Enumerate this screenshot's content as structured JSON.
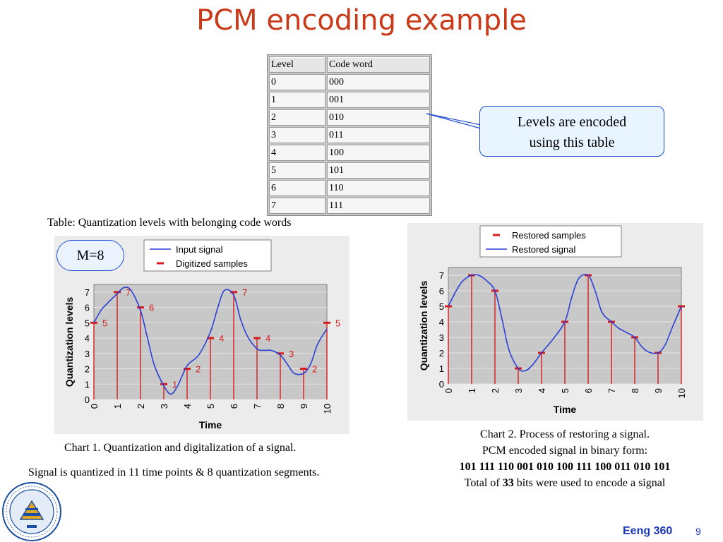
{
  "slide": {
    "title": "PCM encoding example",
    "footer_course": "Eeng 360",
    "footer_page": "9"
  },
  "code_table": {
    "headers": [
      "Level",
      "Code word"
    ],
    "rows": [
      [
        "0",
        "000"
      ],
      [
        "1",
        "001"
      ],
      [
        "2",
        "010"
      ],
      [
        "3",
        "011"
      ],
      [
        "4",
        "100"
      ],
      [
        "5",
        "101"
      ],
      [
        "6",
        "110"
      ],
      [
        "7",
        "111"
      ]
    ],
    "caption": "Table: Quantization levels with belonging code words"
  },
  "callout": {
    "line1": "Levels are encoded",
    "line2": "using this table"
  },
  "m_badge": "M=8",
  "left_captions": {
    "chart1": "Chart 1. Quantization and digitalization of a signal.",
    "note": "Signal is quantized in 11 time points & 8 quantization segments."
  },
  "right_captions": {
    "line1": "Chart 2. Process of restoring a signal.",
    "line2": "PCM encoded signal in binary form:",
    "binary": "101 111 110 001 010 100 111 100 011 010 101",
    "total_prefix": "Total of ",
    "total_bits": "33",
    "total_suffix": " bits were used to encode a signal"
  },
  "colors": {
    "title": "#c83a1a",
    "signal": "#2b3fd6",
    "samples": "#d81c1c",
    "plot_bg": "#c8c8c8",
    "panel_bg": "#ececec",
    "footer": "#1a36b8"
  },
  "chart_data": [
    {
      "type": "line",
      "xlabel": "Time",
      "ylabel": "Quantization levels",
      "xlim": [
        0,
        10
      ],
      "ylim": [
        0,
        7.5
      ],
      "xticks": [
        0,
        1,
        2,
        3,
        4,
        5,
        6,
        7,
        8,
        9,
        10
      ],
      "yticks": [
        0,
        1,
        2,
        3,
        4,
        5,
        6,
        7
      ],
      "grid": true,
      "legend_position": "top-right",
      "series": [
        {
          "name": "Input signal",
          "kind": "line",
          "x": [
            0,
            0.3,
            0.6,
            1.0,
            1.3,
            1.6,
            2.0,
            2.3,
            2.6,
            3.0,
            3.3,
            3.6,
            4.0,
            4.5,
            5.0,
            5.3,
            5.6,
            6.0,
            6.3,
            6.6,
            7.0,
            7.3,
            7.6,
            8.0,
            8.3,
            8.6,
            9.0,
            9.3,
            9.6,
            10.0
          ],
          "y": [
            5.0,
            5.8,
            6.3,
            6.9,
            7.3,
            7.1,
            5.8,
            4.0,
            2.2,
            0.9,
            0.35,
            0.9,
            2.2,
            2.9,
            4.4,
            5.9,
            7.1,
            6.8,
            5.2,
            4.1,
            3.3,
            3.2,
            3.2,
            2.9,
            2.3,
            1.7,
            1.7,
            2.3,
            3.6,
            4.6
          ]
        },
        {
          "name": "Digitized samples",
          "kind": "samples",
          "x": [
            0,
            1,
            2,
            3,
            4,
            5,
            6,
            7,
            8,
            9,
            10
          ],
          "y": [
            5,
            7,
            6,
            1,
            2,
            4,
            7,
            4,
            3,
            2,
            5
          ],
          "labels": [
            "5",
            "7",
            "6",
            "1",
            "2",
            "4",
            "7",
            "4",
            "3",
            "2",
            "5"
          ]
        }
      ]
    },
    {
      "type": "line",
      "xlabel": "Time",
      "ylabel": "Quantization levels",
      "xlim": [
        0,
        10
      ],
      "ylim": [
        0,
        7.5
      ],
      "xticks": [
        0,
        1,
        2,
        3,
        4,
        5,
        6,
        7,
        8,
        9,
        10
      ],
      "yticks": [
        0,
        1,
        2,
        3,
        4,
        5,
        6,
        7
      ],
      "grid": true,
      "legend_position": "top-right",
      "series": [
        {
          "name": "Restored samples",
          "kind": "samples",
          "x": [
            0,
            1,
            2,
            3,
            4,
            5,
            6,
            7,
            8,
            9,
            10
          ],
          "y": [
            5,
            7,
            6,
            1,
            2,
            4,
            7,
            4,
            3,
            2,
            5
          ]
        },
        {
          "name": "Restored signal",
          "kind": "line",
          "x": [
            0,
            0.3,
            0.6,
            1.0,
            1.3,
            1.6,
            2.0,
            2.3,
            2.6,
            3.0,
            3.3,
            3.6,
            4.0,
            4.5,
            5.0,
            5.3,
            5.6,
            6.0,
            6.3,
            6.6,
            7.0,
            7.3,
            7.6,
            8.0,
            8.3,
            8.6,
            9.0,
            9.3,
            9.6,
            10.0
          ],
          "y": [
            5.0,
            5.9,
            6.6,
            7.0,
            7.0,
            6.7,
            6.0,
            4.2,
            2.2,
            1.0,
            0.85,
            1.2,
            2.0,
            2.9,
            4.0,
            5.6,
            6.8,
            7.0,
            6.0,
            4.6,
            4.0,
            3.6,
            3.35,
            3.0,
            2.4,
            2.05,
            2.0,
            2.5,
            3.6,
            5.0
          ]
        }
      ]
    }
  ]
}
